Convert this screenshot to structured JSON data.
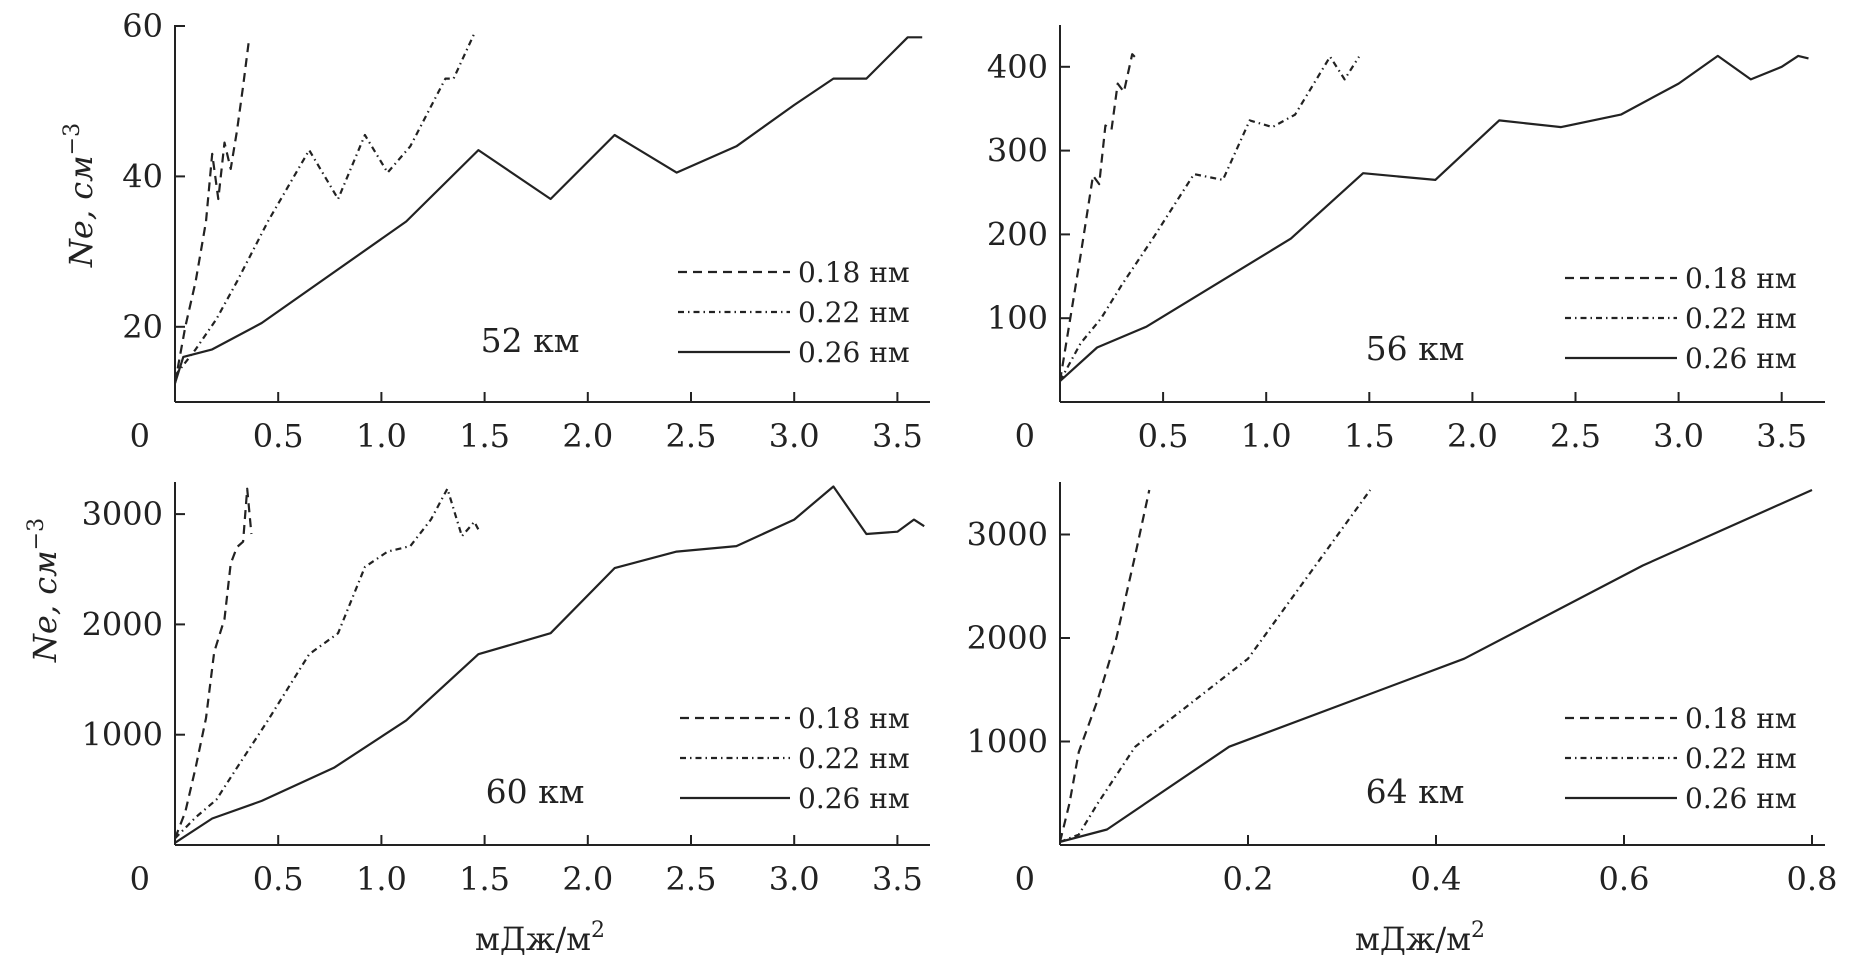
{
  "figure": {
    "xlabel": "мДж/м",
    "xlabel_sup": "2",
    "ylabel": "Ne, см",
    "ylabel_sup": "−3"
  },
  "chart_data": [
    {
      "type": "line",
      "panel_label": "52 км",
      "xlim": [
        0,
        3.65
      ],
      "ylim": [
        10,
        60
      ],
      "xticks": [
        0.5,
        1.0,
        1.5,
        2.0,
        2.5,
        3.0,
        3.5
      ],
      "xtick_labels": [
        "0.5",
        "1.0",
        "1.5",
        "2.0",
        "2.5",
        "3.0",
        "3.5"
      ],
      "yticks": [
        20,
        40,
        60
      ],
      "ytick_labels": [
        "20",
        "40",
        "60"
      ],
      "origin_label": "0",
      "legend_position": "bottom-right",
      "series": [
        {
          "name": "0.18 нм",
          "style": "dashed",
          "x": [
            0,
            0.05,
            0.1,
            0.15,
            0.18,
            0.21,
            0.24,
            0.27,
            0.3,
            0.33,
            0.36
          ],
          "y": [
            12.5,
            20,
            26,
            34,
            43,
            37,
            44.5,
            41,
            46,
            52,
            58.5
          ]
        },
        {
          "name": "0.22 нм",
          "style": "dash-dot",
          "x": [
            0,
            0.1,
            0.2,
            0.3,
            0.45,
            0.65,
            0.79,
            0.92,
            1.03,
            1.14,
            1.31,
            1.35,
            1.45
          ],
          "y": [
            13.5,
            17,
            21,
            26,
            34,
            43.5,
            37,
            45.5,
            40.5,
            44,
            53,
            53,
            59
          ]
        },
        {
          "name": "0.26 нм",
          "style": "solid",
          "x": [
            0,
            0.04,
            0.18,
            0.42,
            1.12,
            1.47,
            1.82,
            2.13,
            2.43,
            2.72,
            3.0,
            3.19,
            3.35,
            3.55,
            3.62
          ],
          "y": [
            12.5,
            16,
            17,
            20.5,
            34,
            43.5,
            37,
            45.5,
            40.5,
            44,
            49.5,
            53,
            53,
            58.5,
            58.5
          ]
        }
      ]
    },
    {
      "type": "line",
      "panel_label": "56 км",
      "xlim": [
        0,
        3.65
      ],
      "ylim": [
        0,
        440
      ],
      "xticks": [
        0.5,
        1.0,
        1.5,
        2.0,
        2.5,
        3.0,
        3.5
      ],
      "xtick_labels": [
        "0.5",
        "1.0",
        "1.5",
        "2.0",
        "2.5",
        "3.0",
        "3.5"
      ],
      "yticks": [
        100,
        200,
        300,
        400
      ],
      "ytick_labels": [
        "100",
        "200",
        "300",
        "400"
      ],
      "origin_label": "0",
      "legend_position": "bottom-right",
      "series": [
        {
          "name": "0.18 нм",
          "style": "dashed",
          "x": [
            0,
            0.05,
            0.1,
            0.16,
            0.19,
            0.22,
            0.25,
            0.28,
            0.31,
            0.35,
            0.37
          ],
          "y": [
            25,
            100,
            175,
            270,
            260,
            330,
            325,
            380,
            370,
            415,
            410
          ]
        },
        {
          "name": "0.22 нм",
          "style": "dash-dot",
          "x": [
            0,
            0.1,
            0.2,
            0.3,
            0.45,
            0.65,
            0.79,
            0.92,
            1.03,
            1.14,
            1.31,
            1.38,
            1.45
          ],
          "y": [
            25,
            70,
            100,
            140,
            195,
            272,
            265,
            336,
            328,
            343,
            412,
            385,
            412
          ]
        },
        {
          "name": "0.26 нм",
          "style": "solid",
          "x": [
            0,
            0.18,
            0.42,
            1.12,
            1.47,
            1.82,
            2.13,
            2.43,
            2.72,
            3.0,
            3.19,
            3.35,
            3.5,
            3.58,
            3.63
          ],
          "y": [
            25,
            65,
            90,
            195,
            273,
            265,
            336,
            328,
            343,
            380,
            413,
            385,
            400,
            413,
            410
          ]
        }
      ]
    },
    {
      "type": "line",
      "panel_label": "60 км",
      "xlim": [
        0,
        3.65
      ],
      "ylim": [
        0,
        3300
      ],
      "xticks": [
        0.5,
        1.0,
        1.5,
        2.0,
        2.5,
        3.0,
        3.5
      ],
      "xtick_labels": [
        "0.5",
        "1.0",
        "1.5",
        "2.0",
        "2.5",
        "3.0",
        "3.5"
      ],
      "yticks": [
        1000,
        2000,
        3000
      ],
      "ytick_labels": [
        "1000",
        "2000",
        "3000"
      ],
      "origin_label": "0",
      "legend_position": "bottom-right",
      "series": [
        {
          "name": "0.18 нм",
          "style": "dashed",
          "x": [
            0,
            0.05,
            0.1,
            0.15,
            0.19,
            0.24,
            0.27,
            0.3,
            0.33,
            0.35,
            0.37
          ],
          "y": [
            60,
            300,
            700,
            1150,
            1750,
            2050,
            2550,
            2700,
            2750,
            3230,
            2820
          ]
        },
        {
          "name": "0.22 нм",
          "style": "dash-dot",
          "x": [
            0,
            0.1,
            0.2,
            0.3,
            0.45,
            0.65,
            0.79,
            0.92,
            1.03,
            1.14,
            1.24,
            1.32,
            1.39,
            1.45,
            1.47
          ],
          "y": [
            60,
            250,
            410,
            700,
            1130,
            1730,
            1920,
            2520,
            2660,
            2710,
            2950,
            3230,
            2800,
            2930,
            2860
          ]
        },
        {
          "name": "0.26 нм",
          "style": "solid",
          "x": [
            0,
            0.18,
            0.42,
            0.77,
            1.12,
            1.47,
            1.82,
            2.13,
            2.43,
            2.72,
            3.0,
            3.19,
            3.35,
            3.5,
            3.58,
            3.63
          ],
          "y": [
            20,
            240,
            400,
            700,
            1130,
            1730,
            1920,
            2510,
            2660,
            2710,
            2950,
            3250,
            2820,
            2840,
            2950,
            2890
          ]
        }
      ]
    },
    {
      "type": "line",
      "panel_label": "64 км",
      "xlim": [
        0,
        0.8
      ],
      "ylim": [
        0,
        3500
      ],
      "xticks": [
        0.2,
        0.4,
        0.6,
        0.8
      ],
      "xtick_labels": [
        "0.2",
        "0.4",
        "0.6",
        "0.8"
      ],
      "yticks": [
        1000,
        2000,
        3000
      ],
      "ytick_labels": [
        "1000",
        "2000",
        "3000"
      ],
      "origin_label": "0",
      "legend_position": "bottom-right",
      "series": [
        {
          "name": "0.18 нм",
          "style": "dashed",
          "x": [
            0,
            0.01,
            0.02,
            0.04,
            0.06,
            0.08,
            0.095
          ],
          "y": [
            30,
            400,
            900,
            1400,
            2000,
            2800,
            3430
          ]
        },
        {
          "name": "0.22 нм",
          "style": "dash-dot",
          "x": [
            0,
            0.02,
            0.04,
            0.08,
            0.2,
            0.33
          ],
          "y": [
            30,
            100,
            400,
            950,
            1800,
            3430
          ]
        },
        {
          "name": "0.26 нм",
          "style": "solid",
          "x": [
            0,
            0.05,
            0.18,
            0.43,
            0.62,
            0.8
          ],
          "y": [
            30,
            150,
            950,
            1800,
            2700,
            3430
          ]
        }
      ]
    }
  ]
}
